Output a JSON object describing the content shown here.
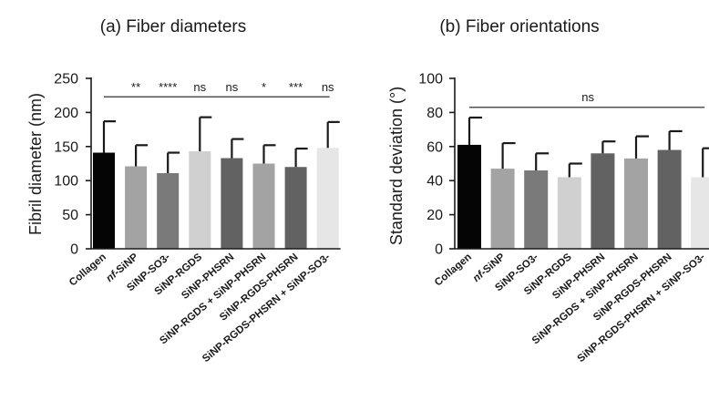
{
  "chart_data": [
    {
      "type": "bar",
      "title": "(a) Fiber diameters",
      "ylabel": "Fibril diameter (nm)",
      "xlabel": "",
      "ylim": [
        0,
        250
      ],
      "yticks": [
        0,
        50,
        100,
        150,
        200,
        250
      ],
      "grid": false,
      "legend": "none",
      "categories": [
        "Collagen",
        "nf-SiNP",
        "SiNP-SO3-",
        "SiNP-RGDS",
        "SiNP-PHSRN",
        "SiNP-RGDS + SiNP-PHSRN",
        "SiNP-RGDS-PHSRN",
        "SiNP-RGDS-PHSRN + SiNP-SO3-"
      ],
      "values": [
        141,
        121,
        111,
        143,
        133,
        125,
        120,
        148
      ],
      "error_upper": [
        46,
        31,
        30,
        50,
        28,
        27,
        27,
        38
      ],
      "bar_colors": [
        "#050505",
        "#a3a3a3",
        "#7a7a7a",
        "#d0d0d0",
        "#626262",
        "#a3a3a3",
        "#626262",
        "#e6e6e6"
      ],
      "comparison_line": {
        "text": "",
        "y": 223
      },
      "significance": [
        "",
        "**",
        "****",
        "ns",
        "ns",
        "*",
        "***",
        "ns"
      ]
    },
    {
      "type": "bar",
      "title": "(b) Fiber orientations",
      "ylabel": "Standard deviation (°)",
      "xlabel": "",
      "ylim": [
        0,
        100
      ],
      "yticks": [
        0,
        20,
        40,
        60,
        80,
        100
      ],
      "grid": false,
      "legend": "none",
      "categories": [
        "Collagen",
        "nf-SiNP",
        "SiNP-SO3-",
        "SiNP-RGDS",
        "SiNP-PHSRN",
        "SiNP-RGDS + SiNP-PHSRN",
        "SiNP-RGDS-PHSRN",
        "SiNP-RGDS-PHSRN + SiNP-SO3-"
      ],
      "values": [
        61,
        47,
        46,
        42,
        56,
        53,
        58,
        42
      ],
      "error_upper": [
        16,
        15,
        10,
        8,
        7,
        13,
        11,
        17
      ],
      "bar_colors": [
        "#050505",
        "#a3a3a3",
        "#7a7a7a",
        "#d0d0d0",
        "#626262",
        "#a3a3a3",
        "#626262",
        "#e6e6e6"
      ],
      "comparison_line": {
        "text": "ns",
        "y": 83
      },
      "significance": []
    }
  ]
}
